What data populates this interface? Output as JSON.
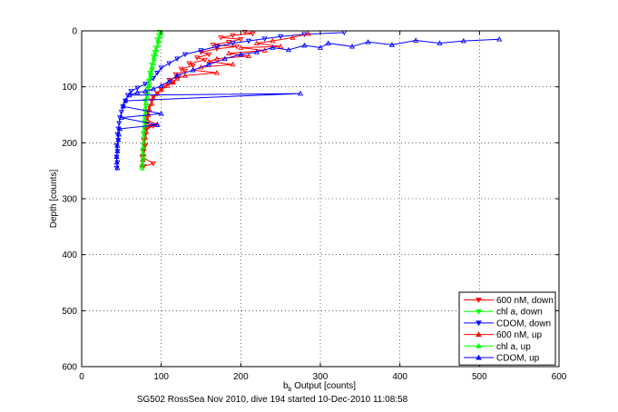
{
  "chart_data": {
    "type": "scatter",
    "title": "",
    "xlabel_main": "b",
    "xlabel_sub": "b",
    "xlabel_rest": " Output [counts]",
    "ylabel": "Depth [counts]",
    "caption": "SG502 RossSea Nov 2010, dive 194 started 10-Dec-2010 11:08:58",
    "xlim": [
      0,
      600
    ],
    "ylim": [
      0,
      600
    ],
    "y_reversed": true,
    "grid": true,
    "grid_style": "dotted",
    "legend_position": "bottom-right",
    "x_ticks": [
      "0",
      "100",
      "200",
      "300",
      "400",
      "500",
      "600"
    ],
    "y_ticks": [
      "0",
      "100",
      "200",
      "300",
      "400",
      "500",
      "600"
    ],
    "series": [
      {
        "name": "600 nM, down",
        "color": "#ff0000",
        "marker": "triangle-down",
        "points": [
          [
            205,
            2
          ],
          [
            215,
            5
          ],
          [
            190,
            8
          ],
          [
            175,
            12
          ],
          [
            200,
            15
          ],
          [
            185,
            20
          ],
          [
            165,
            25
          ],
          [
            195,
            28
          ],
          [
            170,
            32
          ],
          [
            150,
            38
          ],
          [
            160,
            42
          ],
          [
            145,
            48
          ],
          [
            155,
            52
          ],
          [
            135,
            58
          ],
          [
            140,
            62
          ],
          [
            125,
            68
          ],
          [
            130,
            72
          ],
          [
            118,
            78
          ],
          [
            122,
            82
          ],
          [
            110,
            88
          ],
          [
            115,
            92
          ],
          [
            105,
            98
          ],
          [
            100,
            105
          ],
          [
            95,
            112
          ],
          [
            90,
            118
          ],
          [
            88,
            125
          ],
          [
            85,
            135
          ],
          [
            83,
            145
          ],
          [
            82,
            155
          ],
          [
            80,
            165
          ],
          [
            90,
            170
          ],
          [
            82,
            175
          ],
          [
            80,
            185
          ],
          [
            78,
            195
          ],
          [
            80,
            205
          ],
          [
            78,
            215
          ],
          [
            76,
            225
          ],
          [
            90,
            237
          ],
          [
            78,
            242
          ]
        ]
      },
      {
        "name": "chl a, down",
        "color": "#00ff00",
        "marker": "triangle-down",
        "points": [
          [
            98,
            2
          ],
          [
            97,
            8
          ],
          [
            95,
            15
          ],
          [
            96,
            22
          ],
          [
            93,
            30
          ],
          [
            92,
            38
          ],
          [
            90,
            45
          ],
          [
            91,
            52
          ],
          [
            88,
            60
          ],
          [
            89,
            68
          ],
          [
            86,
            75
          ],
          [
            87,
            82
          ],
          [
            84,
            90
          ],
          [
            85,
            98
          ],
          [
            83,
            105
          ],
          [
            82,
            115
          ],
          [
            80,
            125
          ],
          [
            81,
            135
          ],
          [
            80,
            145
          ],
          [
            79,
            155
          ],
          [
            80,
            165
          ],
          [
            79,
            175
          ],
          [
            78,
            185
          ],
          [
            79,
            195
          ],
          [
            78,
            205
          ],
          [
            77,
            215
          ],
          [
            78,
            225
          ],
          [
            77,
            235
          ],
          [
            76,
            245
          ]
        ]
      },
      {
        "name": "CDOM, down",
        "color": "#0000ff",
        "marker": "triangle-down",
        "points": [
          [
            330,
            3
          ],
          [
            280,
            6
          ],
          [
            250,
            10
          ],
          [
            230,
            14
          ],
          [
            210,
            18
          ],
          [
            190,
            22
          ],
          [
            170,
            28
          ],
          [
            150,
            35
          ],
          [
            130,
            42
          ],
          [
            120,
            50
          ],
          [
            110,
            58
          ],
          [
            100,
            66
          ],
          [
            95,
            75
          ],
          [
            90,
            85
          ],
          [
            80,
            95
          ],
          [
            70,
            102
          ],
          [
            62,
            108
          ],
          [
            58,
            115
          ],
          [
            55,
            125
          ],
          [
            52,
            135
          ],
          [
            50,
            145
          ],
          [
            48,
            155
          ],
          [
            47,
            165
          ],
          [
            46,
            175
          ],
          [
            45,
            185
          ],
          [
            46,
            195
          ],
          [
            44,
            205
          ],
          [
            45,
            215
          ],
          [
            44,
            225
          ],
          [
            45,
            235
          ],
          [
            44,
            245
          ]
        ]
      },
      {
        "name": "600 nM, up",
        "color": "#ff0000",
        "marker": "triangle-up",
        "points": [
          [
            285,
            5
          ],
          [
            265,
            12
          ],
          [
            240,
            18
          ],
          [
            220,
            22
          ],
          [
            250,
            28
          ],
          [
            200,
            30
          ],
          [
            230,
            35
          ],
          [
            185,
            40
          ],
          [
            210,
            45
          ],
          [
            170,
            50
          ],
          [
            160,
            55
          ],
          [
            190,
            60
          ],
          [
            150,
            65
          ],
          [
            140,
            70
          ],
          [
            170,
            75
          ],
          [
            130,
            80
          ],
          [
            120,
            85
          ],
          [
            115,
            92
          ],
          [
            108,
            98
          ],
          [
            100,
            105
          ],
          [
            95,
            112
          ],
          [
            90,
            120
          ],
          [
            88,
            130
          ],
          [
            85,
            140
          ],
          [
            84,
            150
          ],
          [
            83,
            160
          ],
          [
            95,
            167
          ],
          [
            82,
            172
          ],
          [
            81,
            180
          ],
          [
            80,
            190
          ],
          [
            79,
            200
          ],
          [
            78,
            210
          ],
          [
            78,
            220
          ],
          [
            77,
            230
          ],
          [
            76,
            240
          ]
        ]
      },
      {
        "name": "chl a, up",
        "color": "#00ff00",
        "marker": "triangle-up",
        "points": [
          [
            100,
            3
          ],
          [
            99,
            10
          ],
          [
            97,
            18
          ],
          [
            96,
            26
          ],
          [
            94,
            34
          ],
          [
            93,
            42
          ],
          [
            91,
            50
          ],
          [
            90,
            58
          ],
          [
            88,
            66
          ],
          [
            87,
            74
          ],
          [
            86,
            82
          ],
          [
            85,
            90
          ],
          [
            84,
            98
          ],
          [
            83,
            108
          ],
          [
            82,
            118
          ],
          [
            81,
            128
          ],
          [
            80,
            138
          ],
          [
            80,
            148
          ],
          [
            79,
            158
          ],
          [
            79,
            168
          ],
          [
            78,
            178
          ],
          [
            78,
            188
          ],
          [
            78,
            198
          ],
          [
            77,
            208
          ],
          [
            77,
            218
          ],
          [
            77,
            228
          ],
          [
            76,
            238
          ],
          [
            76,
            245
          ]
        ]
      },
      {
        "name": "CDOM, up",
        "color": "#0000ff",
        "marker": "triangle-up",
        "points": [
          [
            525,
            15
          ],
          [
            480,
            18
          ],
          [
            450,
            22
          ],
          [
            420,
            17
          ],
          [
            390,
            25
          ],
          [
            360,
            20
          ],
          [
            340,
            28
          ],
          [
            310,
            22
          ],
          [
            300,
            30
          ],
          [
            280,
            26
          ],
          [
            260,
            34
          ],
          [
            240,
            30
          ],
          [
            220,
            38
          ],
          [
            200,
            42
          ],
          [
            180,
            50
          ],
          [
            160,
            60
          ],
          [
            140,
            70
          ],
          [
            120,
            80
          ],
          [
            110,
            90
          ],
          [
            100,
            98
          ],
          [
            90,
            104
          ],
          [
            80,
            108
          ],
          [
            70,
            110
          ],
          [
            60,
            115
          ],
          [
            275,
            112
          ],
          [
            55,
            125
          ],
          [
            52,
            135
          ],
          [
            100,
            148
          ],
          [
            50,
            155
          ],
          [
            95,
            168
          ],
          [
            48,
            175
          ],
          [
            47,
            185
          ],
          [
            46,
            195
          ],
          [
            45,
            205
          ],
          [
            45,
            215
          ],
          [
            44,
            225
          ],
          [
            44,
            235
          ],
          [
            45,
            245
          ]
        ]
      }
    ]
  }
}
